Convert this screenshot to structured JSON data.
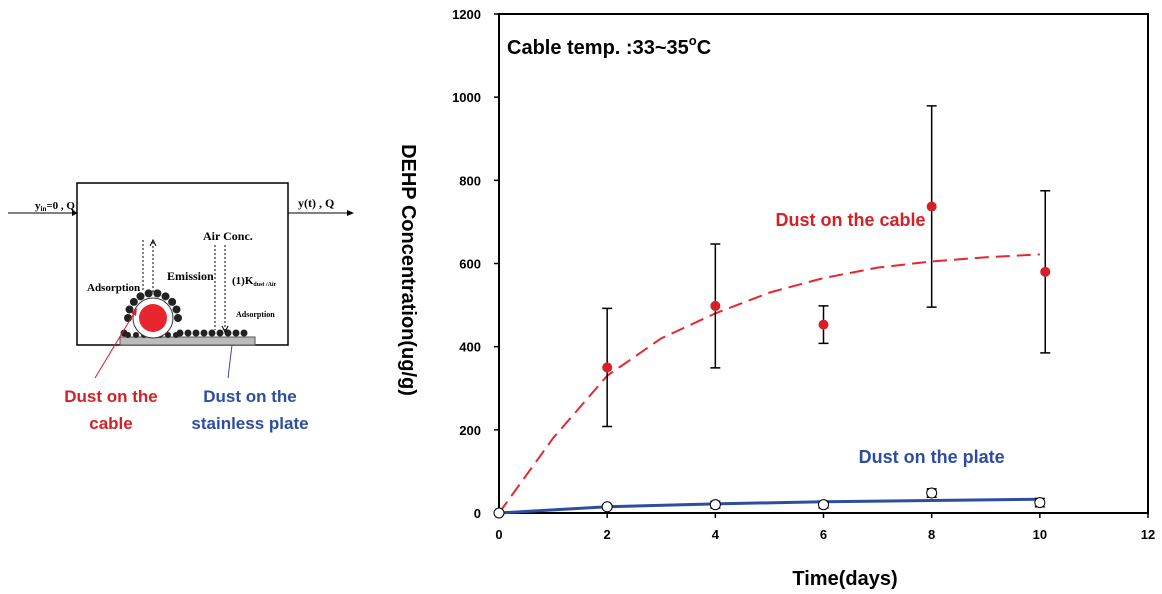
{
  "chart_data": {
    "type": "scatter",
    "xlabel": "Time(days)",
    "ylabel": "DEHP Concentration(ug/g)",
    "xlim": [
      0,
      12
    ],
    "xticks": [
      0,
      2,
      4,
      6,
      8,
      10,
      12
    ],
    "ylim": [
      0,
      1200
    ],
    "yticks": [
      0,
      200,
      400,
      600,
      800,
      1000,
      1200
    ],
    "annotation": {
      "text": "Cable temp. :33~35",
      "sup": "o",
      "after": "C"
    },
    "series": [
      {
        "kind": "line",
        "color": "#e8262d",
        "dashed": true,
        "x": [
          0,
          1,
          2,
          3,
          4,
          5,
          6,
          7,
          8,
          9,
          10
        ],
        "values": [
          0,
          180,
          330,
          420,
          480,
          530,
          565,
          590,
          605,
          615,
          622
        ]
      },
      {
        "kind": "scatter",
        "color": "#d71f26",
        "x": [
          0,
          2,
          4,
          6,
          8,
          10.1
        ],
        "values": [
          0,
          350,
          498,
          453,
          737,
          580
        ],
        "errors": [
          null,
          142,
          149,
          45,
          242,
          195
        ]
      },
      {
        "kind": "line",
        "color": "#2e4da0",
        "x": [
          0,
          2,
          4,
          6,
          8,
          10
        ],
        "values": [
          0,
          15,
          22,
          27,
          30,
          33
        ]
      },
      {
        "kind": "scatter",
        "color": "#000000",
        "hollow": true,
        "x": [
          0,
          2,
          4,
          6,
          8,
          10
        ],
        "values": [
          0,
          15,
          20,
          20,
          48,
          25
        ],
        "errors": [
          null,
          5,
          8,
          8,
          10,
          10
        ]
      }
    ],
    "labels": [
      {
        "text": "Dust on the cable",
        "color": "#d71f26",
        "x": 6.5,
        "y": 690
      },
      {
        "text": "Dust on the plate",
        "color": "#2e4da0",
        "x": 8,
        "y": 120
      }
    ]
  },
  "diagram": {
    "inflow": {
      "main": "y",
      "sub": "in",
      "rest": "=0 , Q"
    },
    "outflow": "y(t) , Q",
    "air": "Air Conc.",
    "emission": "Emission",
    "k": {
      "main": "(1)K",
      "sub": "dust /Air"
    },
    "adsorption_left": "Adsorption",
    "adsorption_right": "Adsorption",
    "cable_label": [
      "Dust on the",
      "cable"
    ],
    "plate_label": [
      "Dust on the",
      "stainless plate"
    ]
  }
}
